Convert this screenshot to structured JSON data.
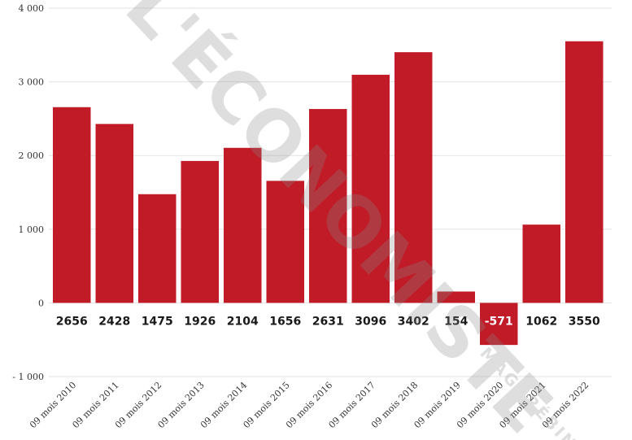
{
  "chart_data": {
    "type": "bar",
    "categories": [
      "09 mois 2010",
      "09 mois 2011",
      "09 mois 2012",
      "09 mois 2013",
      "09 mois 2014",
      "09 mois 2015",
      "09 mois 2016",
      "09 mois 2017",
      "09 mois 2018",
      "09 mois 2019",
      "09 mois 2020",
      "09 mois 2021",
      "09 mois 2022"
    ],
    "values": [
      2656,
      2428,
      1475,
      1926,
      2104,
      1656,
      2631,
      3096,
      3402,
      154,
      -571,
      1062,
      3550
    ],
    "data_labels": [
      "2656",
      "2428",
      "1475",
      "1926",
      "2104",
      "1656",
      "2631",
      "3096",
      "3402",
      "154",
      "-571",
      "1062",
      "3550"
    ],
    "y_ticks": [
      {
        "value": 4000,
        "label": "4 000"
      },
      {
        "value": 3000,
        "label": "3 000"
      },
      {
        "value": 2000,
        "label": "2 000"
      },
      {
        "value": 1000,
        "label": "1 000"
      },
      {
        "value": 0,
        "label": "0"
      },
      {
        "value": -1000,
        "label": "- 1 000"
      }
    ],
    "ylim": [
      -1000,
      4000
    ],
    "title": "",
    "xlabel": "",
    "ylabel": "",
    "grid": true,
    "legend": "none",
    "colors": {
      "bar": "#c01b27",
      "grid": "#e3e3e3",
      "label_on_white": "#1a1a1a",
      "label_on_bar": "#ffffff"
    }
  },
  "watermark": {
    "main_text": "L'ÉCONOMISTE",
    "sub_text": "MAGHRÉBIN",
    "color": "#8a8a8a"
  }
}
